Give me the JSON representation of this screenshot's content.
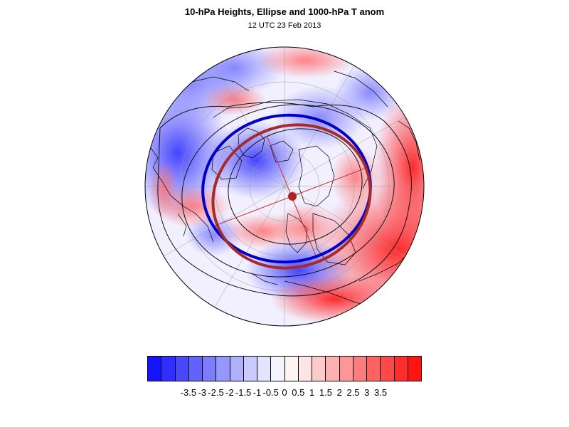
{
  "map": {
    "title": "10-hPa Heights, Ellipse and 1000-hPa T anom",
    "subtitle": "12 UTC 23 Feb 2013",
    "projection": "polar-stereographic",
    "hemisphere": "northern",
    "layers": [
      "shaded-temperature-anomaly",
      "height-contours",
      "coastlines",
      "lat-lon-grid",
      "polar-vortex-ellipse",
      "vortex-edge-contour",
      "vortex-centroid"
    ],
    "colors": {
      "ellipse": "#a52a2a",
      "vortex_edge": "#0000c8",
      "centroid": "#b22222",
      "cold": "#1a1aff",
      "warm": "#ff1a1a"
    }
  },
  "colorbar": {
    "colors": [
      "#1414ff",
      "#2e2eff",
      "#4848ff",
      "#6262ff",
      "#7c7cff",
      "#9696ff",
      "#b0b0ff",
      "#cacaff",
      "#e4e4ff",
      "#f4f4ff",
      "#fff4f4",
      "#ffe4e4",
      "#ffcaca",
      "#ffb0b0",
      "#ff9696",
      "#ff7c7c",
      "#ff6262",
      "#ff4848",
      "#ff2e2e",
      "#ff1414"
    ],
    "tick_labels": [
      "-3.5",
      "-3",
      "-2.5",
      "-2",
      "-1.5",
      "-1",
      "-0.5",
      "0",
      "0.5",
      "1",
      "1.5",
      "2",
      "2.5",
      "3",
      "3.5"
    ]
  }
}
